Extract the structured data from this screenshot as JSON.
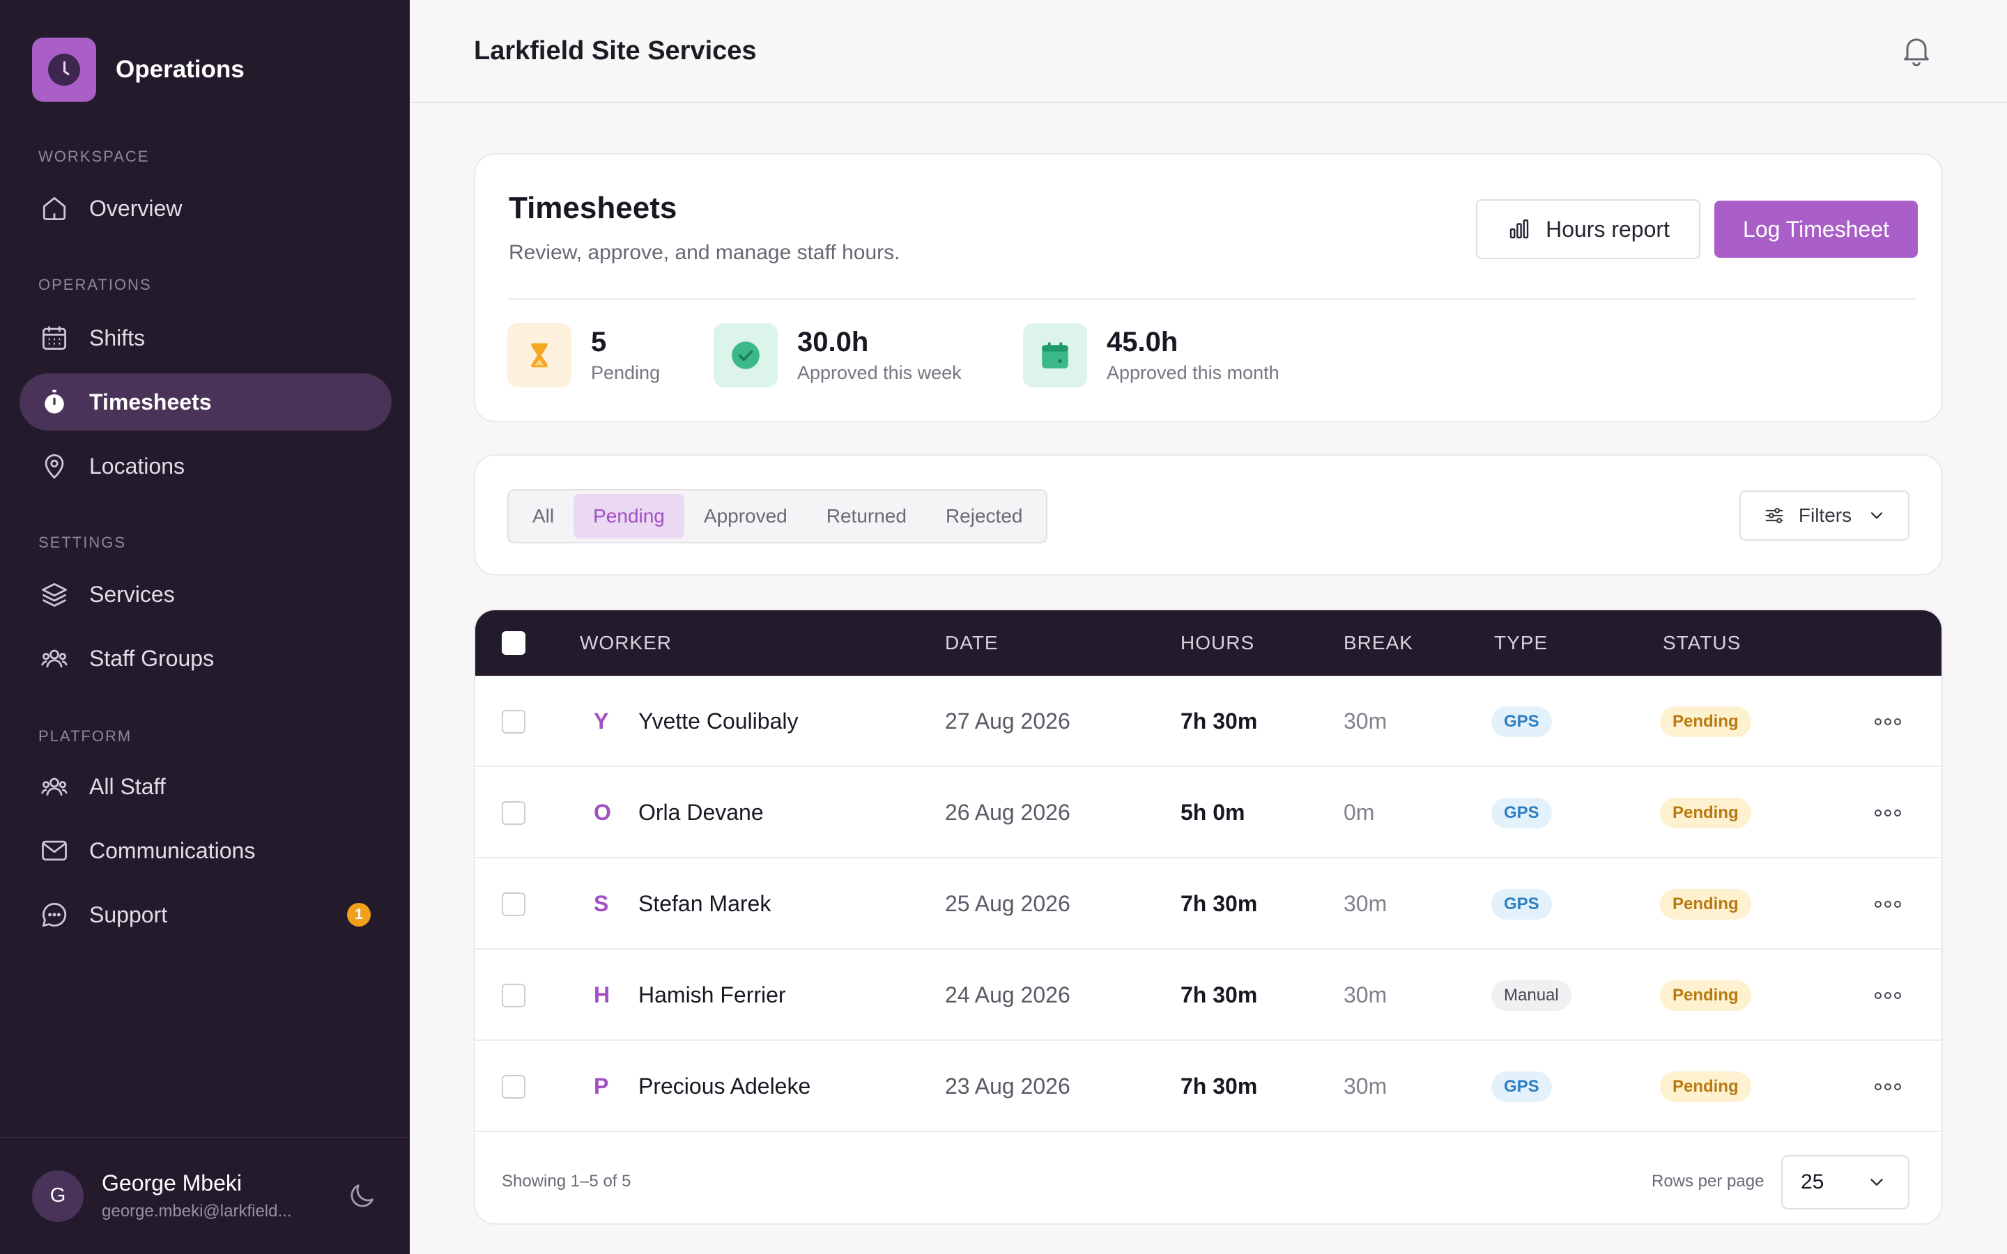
{
  "app": {
    "name": "Operations"
  },
  "sidebar": {
    "sections": {
      "workspace": "WORKSPACE",
      "operations": "OPERATIONS",
      "settings": "SETTINGS",
      "platform": "PLATFORM"
    },
    "items": [
      {
        "label": "Overview",
        "icon": "home-icon"
      },
      {
        "label": "Shifts",
        "icon": "calendar-icon"
      },
      {
        "label": "Timesheets",
        "icon": "stopwatch-icon",
        "active": true
      },
      {
        "label": "Locations",
        "icon": "map-pin-icon"
      },
      {
        "label": "Services",
        "icon": "layers-icon"
      },
      {
        "label": "Staff Groups",
        "icon": "users-icon"
      },
      {
        "label": "All Staff",
        "icon": "users-icon"
      },
      {
        "label": "Communications",
        "icon": "mail-icon"
      },
      {
        "label": "Support",
        "icon": "chat-icon",
        "badge": "1"
      }
    ],
    "user": {
      "initial": "G",
      "name": "George Mbeki",
      "email": "george.mbeki@larkfield..."
    }
  },
  "topbar": {
    "title": "Larkfield Site Services"
  },
  "header": {
    "title": "Timesheets",
    "subtitle": "Review, approve, and manage staff hours.",
    "hours_report_label": "Hours report",
    "log_timesheet_label": "Log Timesheet",
    "stats": [
      {
        "value": "5",
        "label": "Pending",
        "icon": "hourglass-icon",
        "color": "#f5a623"
      },
      {
        "value": "30.0h",
        "label": "Approved this week",
        "icon": "check-circle-icon",
        "color": "#3cb98a"
      },
      {
        "value": "45.0h",
        "label": "Approved this month",
        "icon": "calendar-icon",
        "color": "#3cb98a"
      }
    ]
  },
  "filters": {
    "tabs": [
      "All",
      "Pending",
      "Approved",
      "Returned",
      "Rejected"
    ],
    "active_tab": "Pending",
    "filters_label": "Filters"
  },
  "table": {
    "columns": [
      "WORKER",
      "DATE",
      "HOURS",
      "BREAK",
      "TYPE",
      "STATUS"
    ],
    "rows": [
      {
        "initial": "Y",
        "worker": "Yvette Coulibaly",
        "date": "27 Aug 2026",
        "hours": "7h 30m",
        "break": "30m",
        "type": "GPS",
        "status": "Pending"
      },
      {
        "initial": "O",
        "worker": "Orla Devane",
        "date": "26 Aug 2026",
        "hours": "5h 0m",
        "break": "0m",
        "type": "GPS",
        "status": "Pending"
      },
      {
        "initial": "S",
        "worker": "Stefan Marek",
        "date": "25 Aug 2026",
        "hours": "7h 30m",
        "break": "30m",
        "type": "GPS",
        "status": "Pending"
      },
      {
        "initial": "H",
        "worker": "Hamish Ferrier",
        "date": "24 Aug 2026",
        "hours": "7h 30m",
        "break": "30m",
        "type": "Manual",
        "status": "Pending"
      },
      {
        "initial": "P",
        "worker": "Precious Adeleke",
        "date": "23 Aug 2026",
        "hours": "7h 30m",
        "break": "30m",
        "type": "GPS",
        "status": "Pending"
      }
    ],
    "showing": "Showing 1–5 of 5",
    "rows_per_page_label": "Rows per page",
    "rows_per_page": "25"
  },
  "colors": {
    "accent": "#a95fc7",
    "sidebar_bg": "#231b2b",
    "active_nav_bg": "#4a3358",
    "pending_pill": "#fdf1cf",
    "gps_pill": "#e3f1fb"
  }
}
